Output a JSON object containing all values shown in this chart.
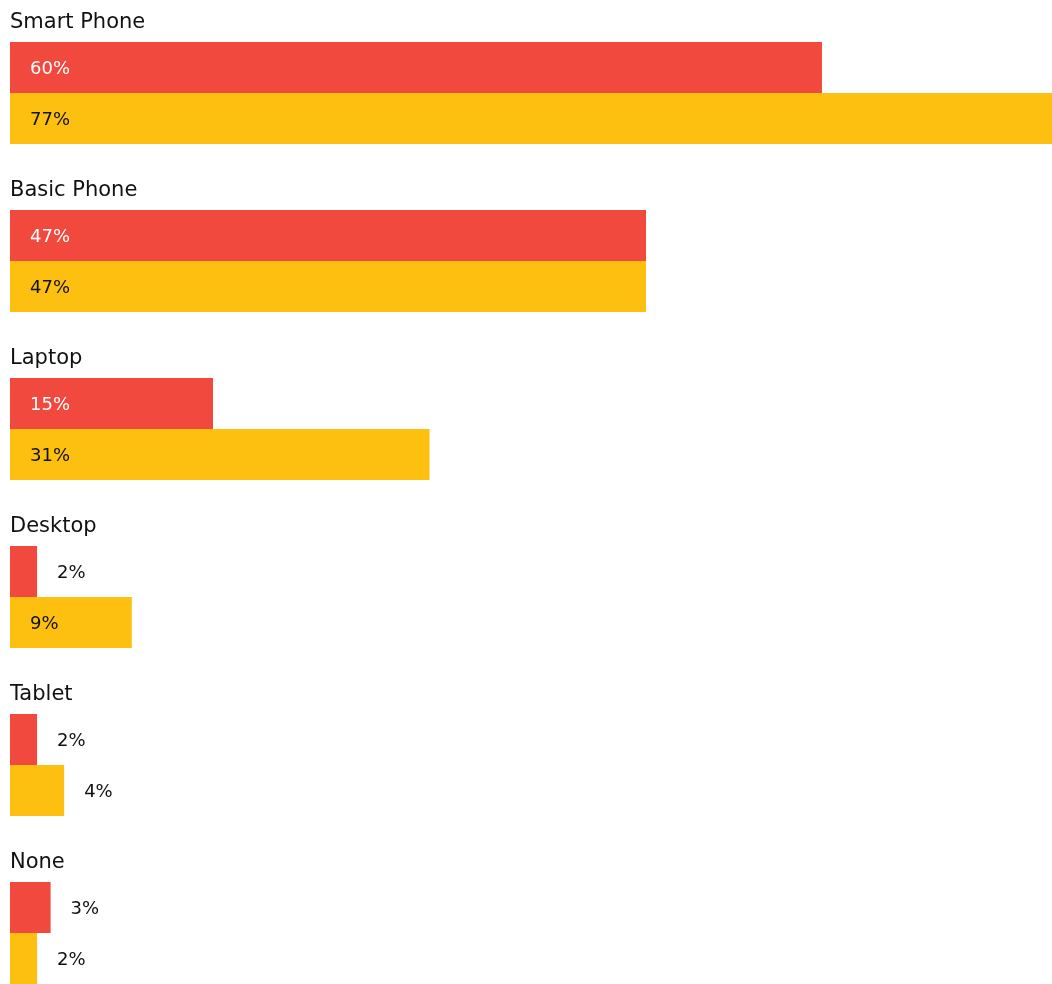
{
  "chart_data": {
    "type": "bar",
    "orientation": "horizontal",
    "categories": [
      "Smart Phone",
      "Basic Phone",
      "Laptop",
      "Desktop",
      "Tablet",
      "None"
    ],
    "series": [
      {
        "color": "#f2493f",
        "values": [
          60,
          47,
          15,
          2,
          2,
          3
        ],
        "value_labels": [
          "60%",
          "47%",
          "15%",
          "2%",
          "2%",
          "3%"
        ]
      },
      {
        "color": "#fdc010",
        "values": [
          77,
          47,
          31,
          9,
          4,
          2
        ],
        "value_labels": [
          "77%",
          "47%",
          "31%",
          "9%",
          "4%",
          "2%"
        ]
      }
    ],
    "xlim": [
      0,
      77
    ]
  }
}
